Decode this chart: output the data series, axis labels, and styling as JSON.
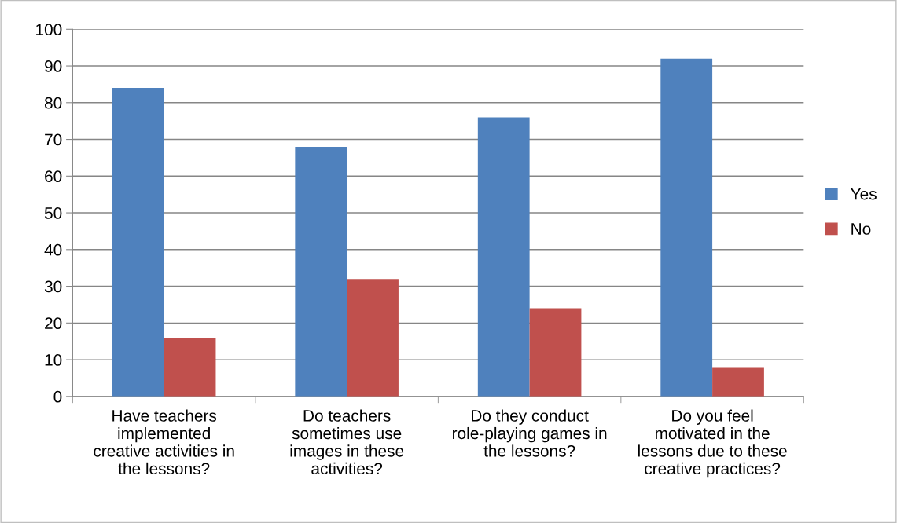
{
  "chart_data": {
    "type": "bar",
    "categories": [
      "Have teachers\nimplemented\ncreative activities in\nthe lessons?",
      "Do teachers\nsometimes use\nimages in these\nactivities?",
      "Do they conduct\nrole-playing games in\nthe lessons?",
      "Do you feel\nmotivated in the\nlessons due to these\ncreative practices?"
    ],
    "series": [
      {
        "name": "Yes",
        "color": "#4f81bd",
        "values": [
          84,
          68,
          76,
          92
        ]
      },
      {
        "name": "No",
        "color": "#c0504d",
        "values": [
          16,
          32,
          24,
          8
        ]
      }
    ],
    "ylim": [
      0,
      100
    ],
    "yticks": [
      0,
      10,
      20,
      30,
      40,
      50,
      60,
      70,
      80,
      90,
      100
    ],
    "grid": "y",
    "legend": "right"
  }
}
